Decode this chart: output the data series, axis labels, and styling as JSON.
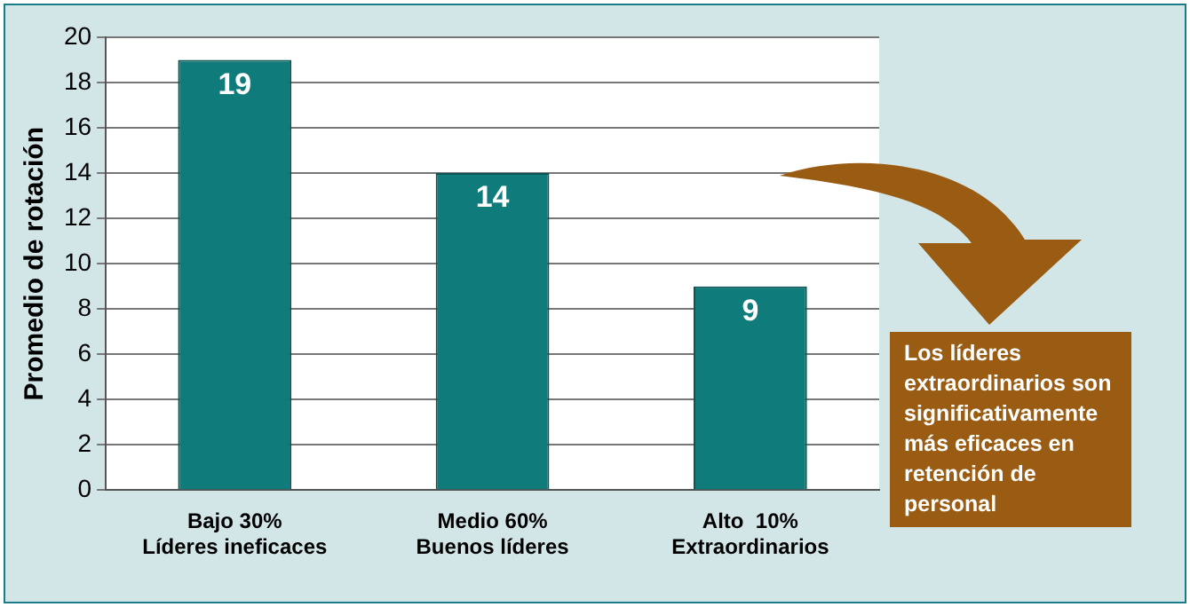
{
  "chart_data": {
    "type": "bar",
    "ylabel": "Promedio de rotación",
    "categories": [
      "Bajo 30%\nLíderes ineficaces",
      "Medio 60%\nBuenos líderes",
      "Alto  10%\nExtraordinarios"
    ],
    "values": [
      19,
      14,
      9
    ],
    "color": "#0f7b7b",
    "ylim": [
      0,
      20
    ],
    "yticks": [
      0,
      2,
      4,
      6,
      8,
      10,
      12,
      14,
      16,
      18,
      20
    ],
    "grid": "y",
    "data_labels": true,
    "annotations": [
      "Los líderes extraordinarios son significativamente más eficaces en retención  de personal"
    ]
  }
}
